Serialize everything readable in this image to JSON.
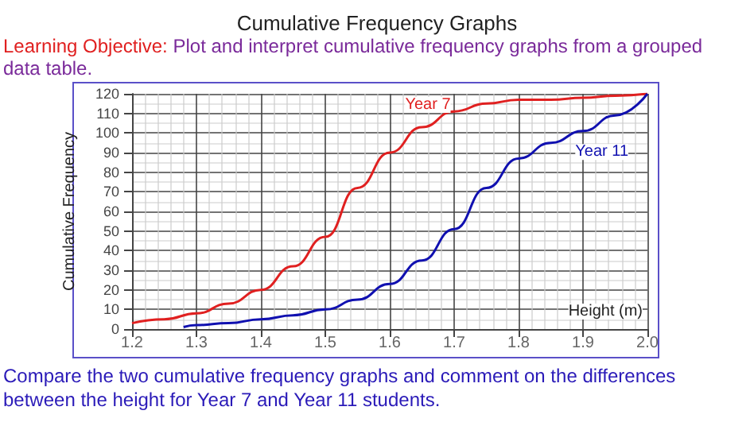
{
  "chart_data": {
    "type": "line",
    "title": "Cumulative Frequency Graphs",
    "subtitle": "Learning Objective: Plot and interpret cumulative frequency graphs from a grouped data table.",
    "xlabel": "Height (m)",
    "ylabel": "Cumulative Frequency",
    "series": [
      {
        "color": "#e02020",
        "x": [
          1.2,
          1.25,
          1.3,
          1.35,
          1.4,
          1.45,
          1.5,
          1.55,
          1.6,
          1.65,
          1.7,
          1.75,
          1.8,
          1.85,
          1.9,
          1.95,
          2.0
        ],
        "values": [
          3,
          5,
          8,
          13,
          20,
          32,
          47,
          72,
          90,
          103,
          111,
          115,
          117,
          117,
          118,
          119,
          120
        ]
      },
      {
        "color": "#1010b0",
        "x": [
          1.28,
          1.3,
          1.35,
          1.4,
          1.45,
          1.5,
          1.55,
          1.6,
          1.65,
          1.7,
          1.75,
          1.8,
          1.85,
          1.9,
          1.95,
          2.0
        ],
        "values": [
          1,
          2,
          3,
          5,
          7,
          10,
          15,
          23,
          35,
          51,
          72,
          87,
          95,
          101,
          109,
          120
        ]
      }
    ],
    "annotations": [
      "Year 7",
      "Year 11",
      "Compare the two cumulative frequency graphs and comment on the differences between the height for Year 7 and Year 11 students."
    ],
    "xlim": [
      1.2,
      2.0
    ],
    "xticks": [
      1.2,
      1.3,
      1.4,
      1.5,
      1.6,
      1.7,
      1.8,
      1.9,
      {
        "value": 2.0,
        "label": "2.0"
      }
    ],
    "ylim": [
      0,
      120
    ],
    "yticks": [
      0,
      10,
      20,
      30,
      40,
      50,
      60,
      70,
      80,
      90,
      100,
      110,
      120
    ],
    "grid": true,
    "marker": "none",
    "line_style": "solid"
  }
}
